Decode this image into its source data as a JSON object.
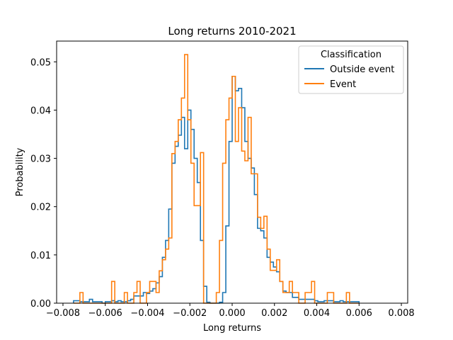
{
  "chart_data": {
    "type": "step-histogram",
    "title": "Long returns 2010-2021",
    "xlabel": "Long returns",
    "ylabel": "Probability",
    "xlim": [
      -0.0083,
      0.0083
    ],
    "ylim": [
      0,
      0.0543
    ],
    "xticks": [
      -0.008,
      -0.006,
      -0.004,
      -0.002,
      0.0,
      0.002,
      0.004,
      0.006,
      0.008
    ],
    "xtick_labels": [
      "−0.008",
      "−0.006",
      "−0.004",
      "−0.002",
      "0.000",
      "0.002",
      "0.004",
      "0.006",
      "0.008"
    ],
    "yticks": [
      0.0,
      0.01,
      0.02,
      0.03,
      0.04,
      0.05
    ],
    "ytick_labels": [
      "0.00",
      "0.01",
      "0.02",
      "0.03",
      "0.04",
      "0.05"
    ],
    "legend": {
      "title": "Classification",
      "placement": "top-right"
    },
    "series": [
      {
        "name": "Outside event",
        "color": "#1f77b4",
        "x_start": -0.0075,
        "bin_width": 0.00015,
        "values": [
          0.0005,
          0.0005,
          0.0003,
          0.0003,
          0.0003,
          0.0008,
          0.0003,
          0.0003,
          0.0003,
          0.0,
          0.0003,
          0.0003,
          0.0005,
          0.0003,
          0.0005,
          0.0003,
          0.0003,
          0.0005,
          0.0008,
          0.0015,
          0.0015,
          0.0015,
          0.0022,
          0.002,
          0.0025,
          0.003,
          0.0042,
          0.0055,
          0.0095,
          0.013,
          0.0195,
          0.029,
          0.0325,
          0.0348,
          0.0385,
          0.032,
          0.04,
          0.036,
          0.03,
          0.025,
          0.013,
          0.0035,
          0.0002,
          0.0,
          0.0,
          0.0,
          0.0002,
          0.0022,
          0.016,
          0.0335,
          0.047,
          0.044,
          0.0445,
          0.0405,
          0.0335,
          0.03,
          0.028,
          0.0225,
          0.0155,
          0.015,
          0.0135,
          0.0095,
          0.0085,
          0.0075,
          0.0065,
          0.0045,
          0.0025,
          0.0022,
          0.0022,
          0.0012,
          0.0012,
          0.0008,
          0.0008,
          0.0008,
          0.0008,
          0.0008,
          0.0005,
          0.0003,
          0.0003,
          0.0005,
          0.0005,
          0.0005,
          0.0003,
          0.0003,
          0.0005,
          0.0003,
          0.0003,
          0.0003,
          0.0003,
          0.0003
        ]
      },
      {
        "name": "Event",
        "color": "#ff7f0e",
        "x_start": -0.0075,
        "bin_width": 0.00015,
        "values": [
          0.0,
          0.0,
          0.0022,
          0.0,
          0.0,
          0.0,
          0.0,
          0.0,
          0.0,
          0.0,
          0.0,
          0.0,
          0.0045,
          0.0,
          0.0,
          0.0,
          0.0022,
          0.0,
          0.0,
          0.0022,
          0.0045,
          0.0,
          0.0,
          0.0022,
          0.0045,
          0.0045,
          0.0022,
          0.0067,
          0.009,
          0.0112,
          0.0135,
          0.031,
          0.0335,
          0.038,
          0.0425,
          0.0515,
          0.038,
          0.029,
          0.0202,
          0.0202,
          0.0312,
          0.0,
          0.0,
          0.0,
          0.0,
          0.0022,
          0.013,
          0.029,
          0.038,
          0.0425,
          0.047,
          0.0335,
          0.0405,
          0.0315,
          0.0295,
          0.0385,
          0.0268,
          0.0268,
          0.0178,
          0.0155,
          0.018,
          0.0112,
          0.0068,
          0.0068,
          0.009,
          0.0045,
          0.0022,
          0.0022,
          0.0045,
          0.0022,
          0.0022,
          0.0,
          0.0,
          0.0022,
          0.0022,
          0.0045,
          0.0,
          0.0,
          0.0,
          0.0,
          0.0022,
          0.0022,
          0.0,
          0.0,
          0.0,
          0.0,
          0.0022,
          0.0,
          0.0,
          0.0
        ]
      }
    ],
    "grid": false
  }
}
